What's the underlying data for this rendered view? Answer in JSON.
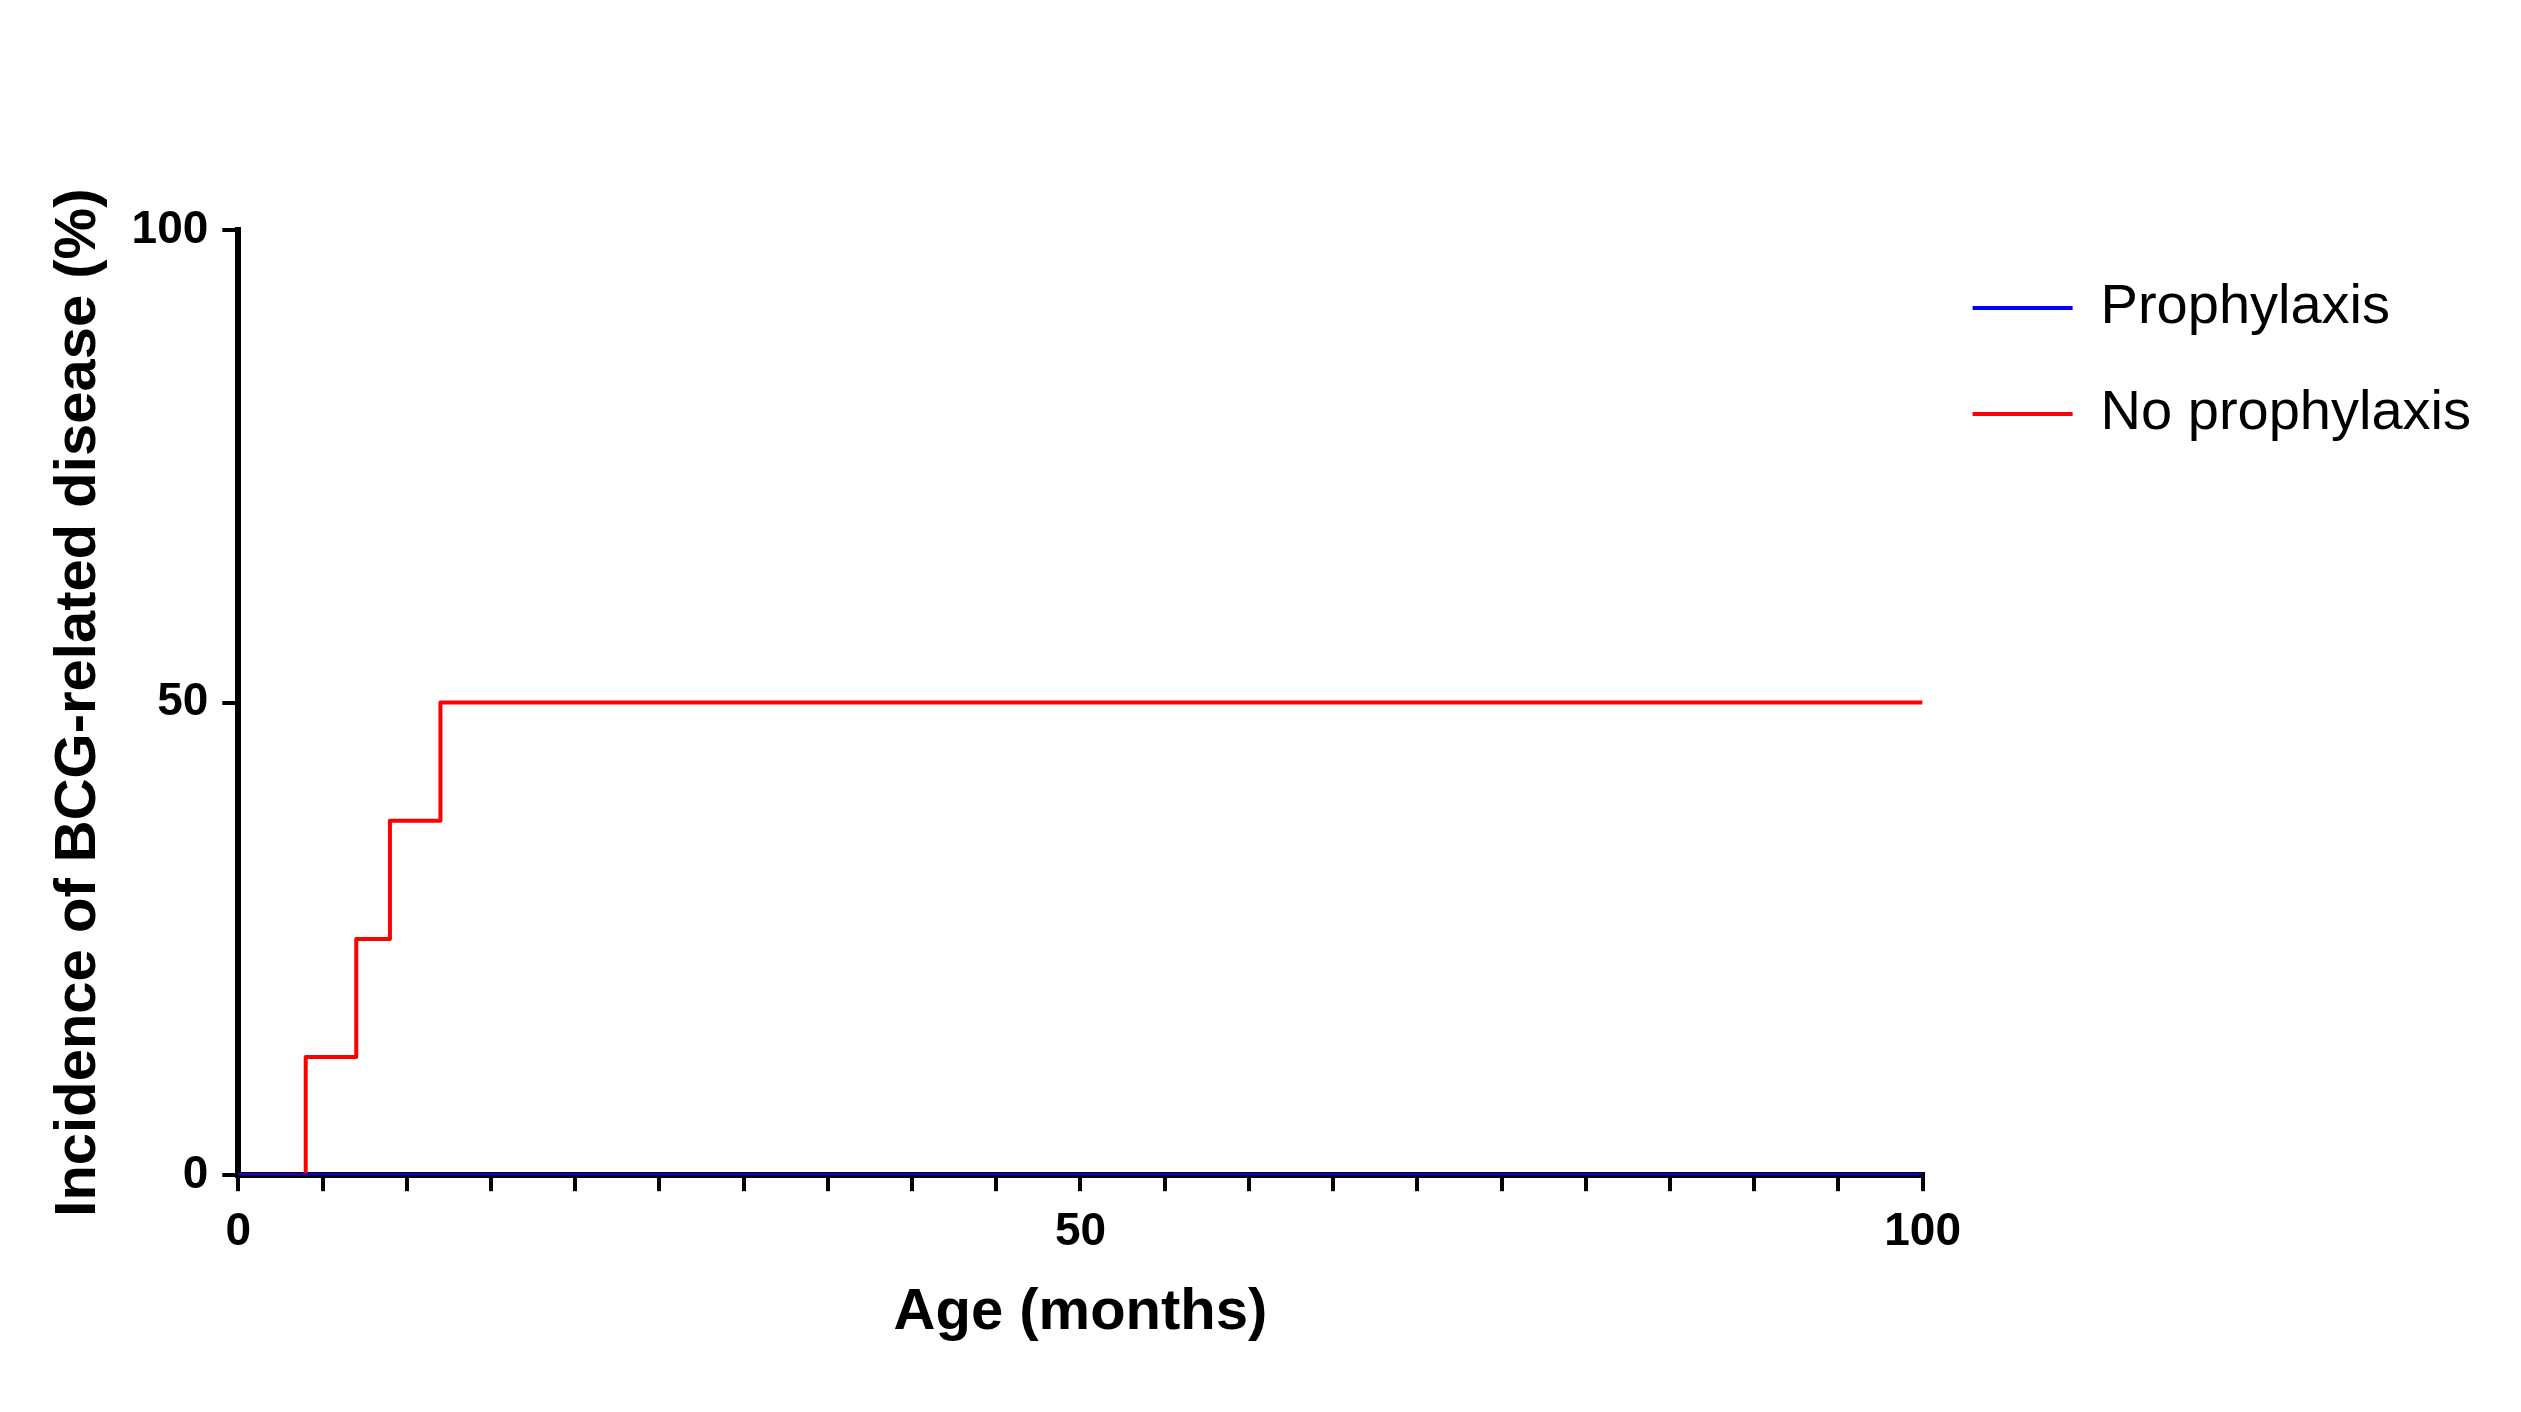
{
  "chart_data": {
    "type": "step",
    "xlabel": "Age (months)",
    "ylabel": "Incidence of BCG-related disease (%)",
    "xlim": [
      0,
      100
    ],
    "ylim": [
      0,
      100
    ],
    "xticks": [
      0,
      {
        "value": 5,
        "label": null
      },
      {
        "value": 10,
        "label": null
      },
      {
        "value": 15,
        "label": null
      },
      {
        "value": 20,
        "label": null
      },
      {
        "value": 25,
        "label": null
      },
      {
        "value": 30,
        "label": null
      },
      {
        "value": 35,
        "label": null
      },
      {
        "value": 40,
        "label": null
      },
      {
        "value": 45,
        "label": null
      },
      50,
      {
        "value": 55,
        "label": null
      },
      {
        "value": 60,
        "label": null
      },
      {
        "value": 65,
        "label": null
      },
      {
        "value": 70,
        "label": null
      },
      {
        "value": 75,
        "label": null
      },
      {
        "value": 80,
        "label": null
      },
      {
        "value": 85,
        "label": null
      },
      {
        "value": 90,
        "label": null
      },
      {
        "value": 95,
        "label": null
      },
      100
    ],
    "yticks": [
      0,
      50,
      100
    ],
    "grid": false,
    "legend": "top right",
    "marker": "none",
    "line_style": "solid",
    "series": [
      {
        "name": "Prophylaxis",
        "color": "#0000ff",
        "x": [
          0,
          100
        ],
        "values": [
          0,
          0
        ]
      },
      {
        "name": "No prophylaxis",
        "color": "#ff0000",
        "x": [
          0,
          4,
          7,
          9,
          12,
          100
        ],
        "values": [
          0,
          12.5,
          25,
          37.5,
          50,
          50
        ]
      }
    ]
  }
}
